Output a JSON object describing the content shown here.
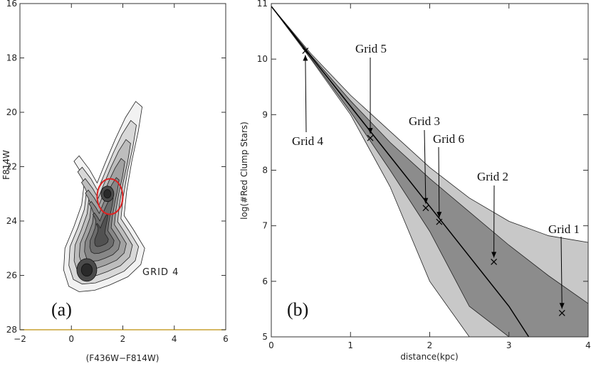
{
  "chart_data": [
    {
      "type": "contour",
      "panel_label": "(a)",
      "xlabel": "(F436W−F814W)",
      "ylabel": "F814W",
      "xlim": [
        -2,
        6
      ],
      "ylim": [
        28,
        16
      ],
      "x_ticks": [
        "−2",
        "0",
        "2",
        "4",
        "6"
      ],
      "y_ticks": [
        "16",
        "18",
        "20",
        "22",
        "24",
        "26",
        "28"
      ],
      "annotation": "GRID 4",
      "highlight": {
        "shape": "ellipse",
        "color": "#dd2222",
        "center_x": 1.5,
        "center_y": 23.1
      },
      "peaks": [
        {
          "x": 1.4,
          "y": 23.0
        },
        {
          "x": 0.6,
          "y": 25.8
        }
      ]
    },
    {
      "type": "line",
      "panel_label": "(b)",
      "xlabel": "distance(kpc)",
      "ylabel": "log(#Red Clump Stars)",
      "xlim": [
        0,
        4
      ],
      "ylim": [
        5,
        11
      ],
      "x_ticks": [
        "0",
        "1",
        "2",
        "3",
        "4"
      ],
      "y_ticks": [
        "5",
        "6",
        "7",
        "8",
        "9",
        "10",
        "11"
      ],
      "series": [
        {
          "name": "best fit",
          "x": [
            0,
            0.5,
            1.0,
            1.5,
            2.0,
            2.5,
            3.0,
            3.25
          ],
          "y": [
            10.95,
            10.05,
            9.15,
            8.25,
            7.35,
            6.45,
            5.55,
            5.0
          ]
        }
      ],
      "band_inner": {
        "x": [
          0,
          0.5,
          1.0,
          1.5,
          2.0,
          2.5,
          3.0,
          3.5,
          4.0
        ],
        "lower": [
          10.95,
          10.02,
          9.05,
          8.0,
          6.9,
          5.55,
          5.0,
          5.0,
          5.0
        ],
        "upper": [
          10.95,
          10.07,
          9.25,
          8.5,
          7.85,
          7.25,
          6.65,
          6.1,
          5.6
        ]
      },
      "band_outer": {
        "x": [
          0,
          0.5,
          1.0,
          1.5,
          2.0,
          2.5,
          3.0,
          3.5,
          4.0
        ],
        "lower": [
          10.95,
          10.0,
          9.0,
          7.7,
          6.0,
          5.0,
          5.0,
          5.0,
          5.0
        ],
        "upper": [
          10.95,
          10.1,
          9.35,
          8.7,
          8.05,
          7.5,
          7.08,
          6.82,
          6.7
        ]
      },
      "points": [
        {
          "name": "Grid 1",
          "x": 3.67,
          "y": 5.43
        },
        {
          "name": "Grid 2",
          "x": 2.81,
          "y": 6.35
        },
        {
          "name": "Grid 3",
          "x": 1.95,
          "y": 7.32
        },
        {
          "name": "Grid 4",
          "x": 0.43,
          "y": 10.15
        },
        {
          "name": "Grid 5",
          "x": 1.25,
          "y": 8.58
        },
        {
          "name": "Grid 6",
          "x": 2.12,
          "y": 7.07
        }
      ]
    }
  ]
}
